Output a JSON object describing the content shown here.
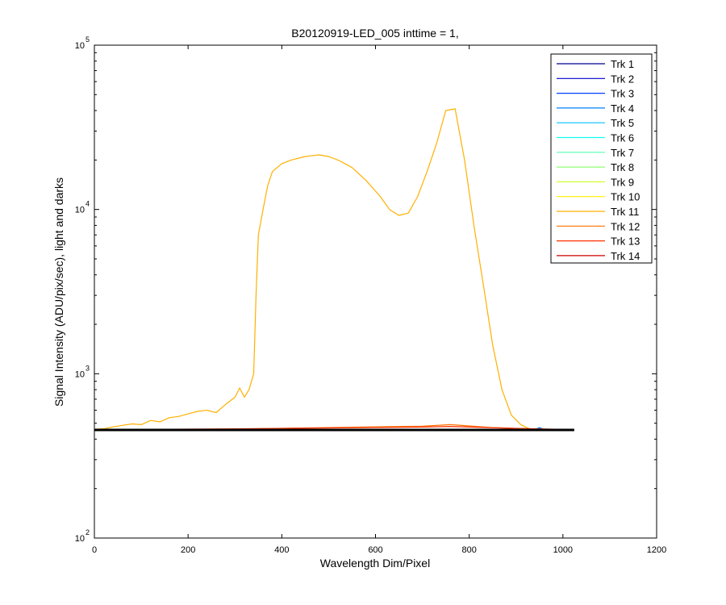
{
  "chart_data": {
    "type": "line",
    "title": "B20120919-LED_005 inttime = 1,",
    "xlabel": "Wavelength Dim/Pixel",
    "ylabel": "Signal Intensity (ADU/pix/sec), light and darks",
    "xlim": [
      0,
      1200
    ],
    "ylim": [
      100,
      100000
    ],
    "yscale": "log",
    "grid": false,
    "legend_position": "top-right",
    "xticks": [
      0,
      200,
      400,
      600,
      800,
      1000,
      1200
    ],
    "yticks": [
      {
        "value": 100,
        "base": "10",
        "exp": "2"
      },
      {
        "value": 1000,
        "base": "10",
        "exp": "3"
      },
      {
        "value": 10000,
        "base": "10",
        "exp": "4"
      },
      {
        "value": 100000,
        "base": "10",
        "exp": "5"
      }
    ],
    "series": [
      {
        "name": "Trk 1",
        "color": "#00008f",
        "points": [
          [
            0,
            455
          ],
          [
            1024,
            455
          ]
        ]
      },
      {
        "name": "Trk 2",
        "color": "#0000c8",
        "points": [
          [
            0,
            455
          ],
          [
            1024,
            455
          ]
        ]
      },
      {
        "name": "Trk 3",
        "color": "#0040ff",
        "points": [
          [
            0,
            456
          ],
          [
            1024,
            456
          ]
        ]
      },
      {
        "name": "Trk 4",
        "color": "#0080ff",
        "points": [
          [
            0,
            456
          ],
          [
            940,
            458
          ],
          [
            950,
            470
          ],
          [
            960,
            458
          ],
          [
            1024,
            456
          ]
        ]
      },
      {
        "name": "Trk 5",
        "color": "#00c0ff",
        "points": [
          [
            0,
            456
          ],
          [
            1024,
            456
          ]
        ]
      },
      {
        "name": "Trk 6",
        "color": "#10ffef",
        "points": [
          [
            0,
            456
          ],
          [
            1024,
            456
          ]
        ]
      },
      {
        "name": "Trk 7",
        "color": "#50ffaf",
        "points": [
          [
            0,
            456
          ],
          [
            1024,
            456
          ]
        ]
      },
      {
        "name": "Trk 8",
        "color": "#8fff70",
        "points": [
          [
            0,
            456
          ],
          [
            1024,
            456
          ]
        ]
      },
      {
        "name": "Trk 9",
        "color": "#cfff30",
        "points": [
          [
            0,
            457
          ],
          [
            1024,
            457
          ]
        ]
      },
      {
        "name": "Trk 10",
        "color": "#ffef00",
        "points": [
          [
            0,
            458
          ],
          [
            1024,
            458
          ]
        ]
      },
      {
        "name": "Trk 11",
        "color": "#ffb000",
        "points": [
          [
            0,
            460
          ],
          [
            20,
            462
          ],
          [
            40,
            475
          ],
          [
            60,
            485
          ],
          [
            80,
            495
          ],
          [
            100,
            490
          ],
          [
            120,
            520
          ],
          [
            140,
            510
          ],
          [
            160,
            540
          ],
          [
            180,
            550
          ],
          [
            200,
            570
          ],
          [
            220,
            590
          ],
          [
            240,
            600
          ],
          [
            260,
            580
          ],
          [
            280,
            650
          ],
          [
            300,
            720
          ],
          [
            310,
            820
          ],
          [
            320,
            720
          ],
          [
            330,
            800
          ],
          [
            340,
            1000
          ],
          [
            345,
            3000
          ],
          [
            350,
            7000
          ],
          [
            360,
            10000
          ],
          [
            370,
            14000
          ],
          [
            380,
            17000
          ],
          [
            400,
            19000
          ],
          [
            420,
            20000
          ],
          [
            450,
            21000
          ],
          [
            480,
            21500
          ],
          [
            500,
            21000
          ],
          [
            520,
            20000
          ],
          [
            550,
            18000
          ],
          [
            580,
            15000
          ],
          [
            610,
            12000
          ],
          [
            630,
            10000
          ],
          [
            650,
            9200
          ],
          [
            670,
            9500
          ],
          [
            690,
            12000
          ],
          [
            710,
            17000
          ],
          [
            730,
            25000
          ],
          [
            750,
            40000
          ],
          [
            770,
            41000
          ],
          [
            790,
            20000
          ],
          [
            810,
            8000
          ],
          [
            830,
            3500
          ],
          [
            850,
            1500
          ],
          [
            870,
            800
          ],
          [
            890,
            560
          ],
          [
            910,
            490
          ],
          [
            930,
            460
          ],
          [
            950,
            455
          ]
        ]
      },
      {
        "name": "Trk 12",
        "color": "#ff7000",
        "points": [
          [
            0,
            456
          ],
          [
            300,
            460
          ],
          [
            500,
            470
          ],
          [
            700,
            480
          ],
          [
            760,
            490
          ],
          [
            850,
            470
          ],
          [
            960,
            460
          ],
          [
            1024,
            456
          ]
        ]
      },
      {
        "name": "Trk 13",
        "color": "#ff3000",
        "points": [
          [
            0,
            457
          ],
          [
            300,
            462
          ],
          [
            500,
            468
          ],
          [
            700,
            474
          ],
          [
            760,
            478
          ],
          [
            900,
            465
          ],
          [
            1024,
            457
          ]
        ]
      },
      {
        "name": "Trk 14",
        "color": "#cf0000",
        "points": [
          [
            0,
            455
          ],
          [
            1024,
            455
          ]
        ]
      },
      {
        "name": "",
        "color": "#000000",
        "points": [
          [
            0,
            455
          ],
          [
            1024,
            455
          ]
        ]
      }
    ]
  }
}
